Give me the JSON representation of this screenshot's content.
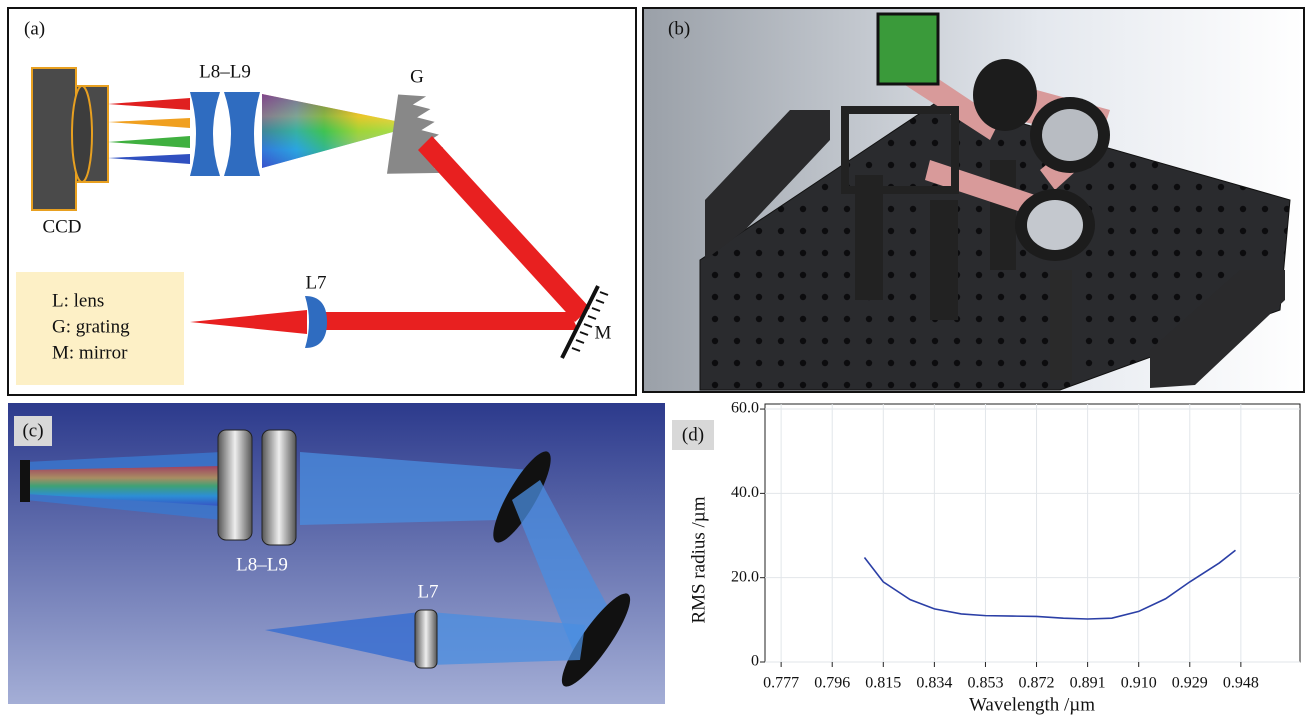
{
  "panel_a": {
    "label": "(a)",
    "ccd": "CCD",
    "lens_group": "L8–L9",
    "grating": "G",
    "lens": "L7",
    "mirror": "M",
    "legend": [
      "L: lens",
      "G: grating",
      "M: mirror"
    ]
  },
  "panel_b": {
    "label": "(b)"
  },
  "panel_c": {
    "label": "(c)",
    "lens_group": "L8–L9",
    "lens": "L7"
  },
  "chart_data": {
    "type": "line",
    "panel_label": "(d)",
    "xlabel": "Wavelength /µm",
    "ylabel": "RMS radius /µm",
    "x": [
      0.808,
      0.815,
      0.825,
      0.834,
      0.844,
      0.853,
      0.863,
      0.872,
      0.882,
      0.891,
      0.9,
      0.91,
      0.92,
      0.929,
      0.94,
      0.946
    ],
    "series": [
      {
        "color": "#2b3fa6",
        "values": [
          24.8,
          19.0,
          14.8,
          12.6,
          11.4,
          11.0,
          10.9,
          10.8,
          10.4,
          10.2,
          10.4,
          12.0,
          15.0,
          19.0,
          23.5,
          26.5
        ]
      }
    ],
    "xlim": [
      0.771,
      0.97
    ],
    "ylim": [
      0,
      61.2
    ],
    "xticks": [
      0.777,
      0.796,
      0.815,
      0.834,
      0.853,
      0.872,
      0.891,
      {
        "value": 0.91,
        "label": "0.910"
      },
      0.929,
      0.948
    ],
    "yticks": [
      0,
      {
        "value": 20,
        "label": "20.0"
      },
      {
        "value": 40,
        "label": "40.0"
      },
      {
        "value": 60,
        "label": "60.0"
      }
    ],
    "grid": true
  }
}
